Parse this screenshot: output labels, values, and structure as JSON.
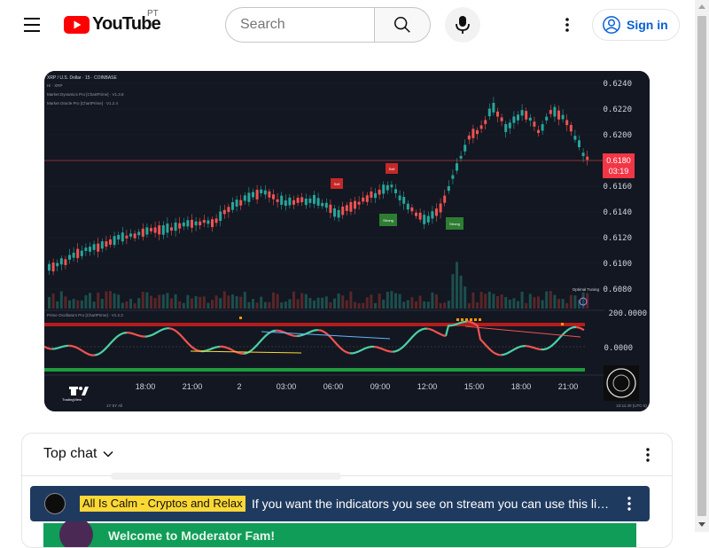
{
  "header": {
    "logo_text": "YouTube",
    "country_code": "PT",
    "search_placeholder": "Search",
    "sign_in_label": "Sign in"
  },
  "video": {
    "chart_header": {
      "symbol_line": "XRP / U.S. Dollar · 15 · COINBASE",
      "indicator_1": "Market Dynamics Pro [ChartPrime] · V1.3.8",
      "indicator_2": "Market Oracle Pro [ChartPrime] · V1.2.4",
      "sub_label": "Hi · XRP",
      "oscillator_label": "Prime Oscillators Pro [ChartPrime] · V1.2.3"
    },
    "price_labels": [
      "0.6240",
      "0.6220",
      "0.6200",
      "0.6180",
      "0.6160",
      "0.6140",
      "0.6120",
      "0.6100",
      "0.6080"
    ],
    "current_price": "0.6180",
    "countdown": "03:19",
    "osc_labels": [
      "200.0000",
      "0.0000"
    ],
    "time_labels": [
      "18:00",
      "21:00",
      "2",
      "03:00",
      "06:00",
      "09:00",
      "12:00",
      "15:00",
      "18:00",
      "21:00"
    ],
    "signals": {
      "sell": "Sell",
      "strong": "Strong"
    },
    "optimal_tuning": "Optimal Tuning",
    "tv_logo_text": "TradingView",
    "bottom_toolbar": "1Y 5Y All",
    "bottom_time": "23:11:40 (UTC-5)"
  },
  "chat": {
    "title": "Top chat",
    "pinned": {
      "author": "All Is Calm - Cryptos and Relax",
      "message": "If you want the indicators you see on stream you can use this link to check them out"
    },
    "membership_text": "Welcome to Moderator Fam!"
  },
  "colors": {
    "youtube_red": "#ff0000",
    "sign_in_blue": "#065fd4",
    "chart_bg": "#131722",
    "bull": "#26a69a",
    "bear": "#ef5350",
    "pinned_bg": "#1f3a5f",
    "membership_bg": "#0f9d58"
  },
  "icons": [
    "menu-icon",
    "youtube-play-icon",
    "search-icon",
    "mic-icon",
    "more-vert-icon",
    "account-icon",
    "chevron-down-icon"
  ]
}
